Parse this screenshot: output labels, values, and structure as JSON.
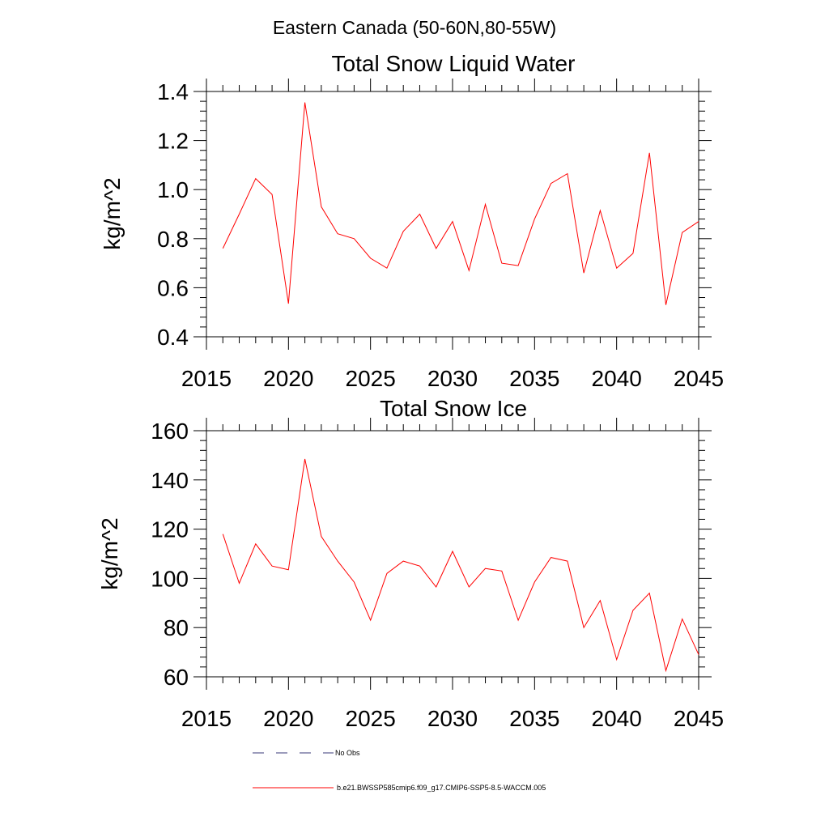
{
  "suptitle": "Eastern Canada (50-60N,80-55W)",
  "legend": {
    "entries": [
      {
        "label": "No Obs",
        "style": "dashed",
        "color": "#3a3a7a"
      },
      {
        "label": "b.e21.BWSSP585cmip6.f09_g17.CMIP6-SSP5-8.5-WACCM.005",
        "style": "solid",
        "color": "#ff0000"
      }
    ]
  },
  "chart_data": [
    {
      "type": "line",
      "title": "Total Snow Liquid Water",
      "xlabel": "",
      "ylabel": "kg/m^2",
      "xlim": [
        2015,
        2045
      ],
      "ylim": [
        0.4,
        1.4
      ],
      "xticks": [
        2015,
        2020,
        2025,
        2030,
        2035,
        2040,
        2045
      ],
      "yticks": [
        "0.4",
        "0.6",
        "0.8",
        "1.0",
        "1.2",
        "1.4"
      ],
      "series": [
        {
          "color": "#ff0000",
          "x": [
            2016,
            2017,
            2018,
            2019,
            2020,
            2021,
            2022,
            2023,
            2024,
            2025,
            2026,
            2027,
            2028,
            2029,
            2030,
            2031,
            2032,
            2033,
            2034,
            2035,
            2036,
            2037,
            2038,
            2039,
            2040,
            2041,
            2042,
            2043,
            2044,
            2045
          ],
          "values": [
            0.76,
            0.9,
            1.045,
            0.98,
            0.535,
            1.355,
            0.93,
            0.82,
            0.8,
            0.72,
            0.68,
            0.83,
            0.9,
            0.76,
            0.87,
            0.67,
            0.94,
            0.7,
            0.69,
            0.88,
            1.025,
            1.065,
            0.66,
            0.915,
            0.68,
            0.74,
            1.15,
            0.53,
            0.825,
            0.87
          ]
        }
      ]
    },
    {
      "type": "line",
      "title": "Total Snow Ice",
      "xlabel": "",
      "ylabel": "kg/m^2",
      "xlim": [
        2015,
        2045
      ],
      "ylim": [
        60,
        160
      ],
      "xticks": [
        2015,
        2020,
        2025,
        2030,
        2035,
        2040,
        2045
      ],
      "yticks": [
        "60",
        "80",
        "100",
        "120",
        "140",
        "160"
      ],
      "series": [
        {
          "color": "#ff0000",
          "x": [
            2016,
            2017,
            2018,
            2019,
            2020,
            2021,
            2022,
            2023,
            2024,
            2025,
            2026,
            2027,
            2028,
            2029,
            2030,
            2031,
            2032,
            2033,
            2034,
            2035,
            2036,
            2037,
            2038,
            2039,
            2040,
            2041,
            2042,
            2043,
            2044,
            2045
          ],
          "values": [
            118,
            98,
            114,
            105,
            103.5,
            148.5,
            117,
            107,
            98.5,
            83,
            102,
            107,
            105,
            96.5,
            111,
            96.5,
            104,
            103,
            83,
            98.5,
            108.5,
            107,
            80,
            91,
            67,
            87,
            94,
            62.5,
            83.5,
            69
          ]
        }
      ]
    }
  ]
}
